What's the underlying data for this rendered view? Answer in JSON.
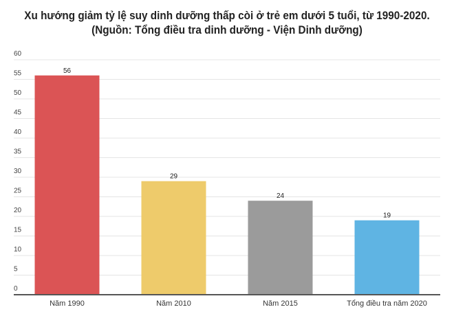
{
  "chart_data": {
    "type": "bar",
    "title": "Xu hướng giảm tỷ lệ suy dinh dưỡng thấp còi ở trẻ em dưới 5 tuổi, từ 1990-2020.",
    "subtitle": "(Nguồn: Tổng điều tra dinh dưỡng - Viện Dinh dưỡng)",
    "categories": [
      "Năm 1990",
      "Năm 2010",
      "Năm 2015",
      "Tổng điều tra năm 2020"
    ],
    "values": [
      56,
      29,
      24,
      19
    ],
    "colors": [
      "#db5455",
      "#eecb6b",
      "#9b9b9b",
      "#5fb4e3"
    ],
    "ylim": [
      0,
      60
    ],
    "yticks": [
      0,
      5,
      10,
      15,
      20,
      25,
      30,
      35,
      40,
      45,
      50,
      55,
      60
    ],
    "grid": true,
    "xlabel": "",
    "ylabel": ""
  }
}
